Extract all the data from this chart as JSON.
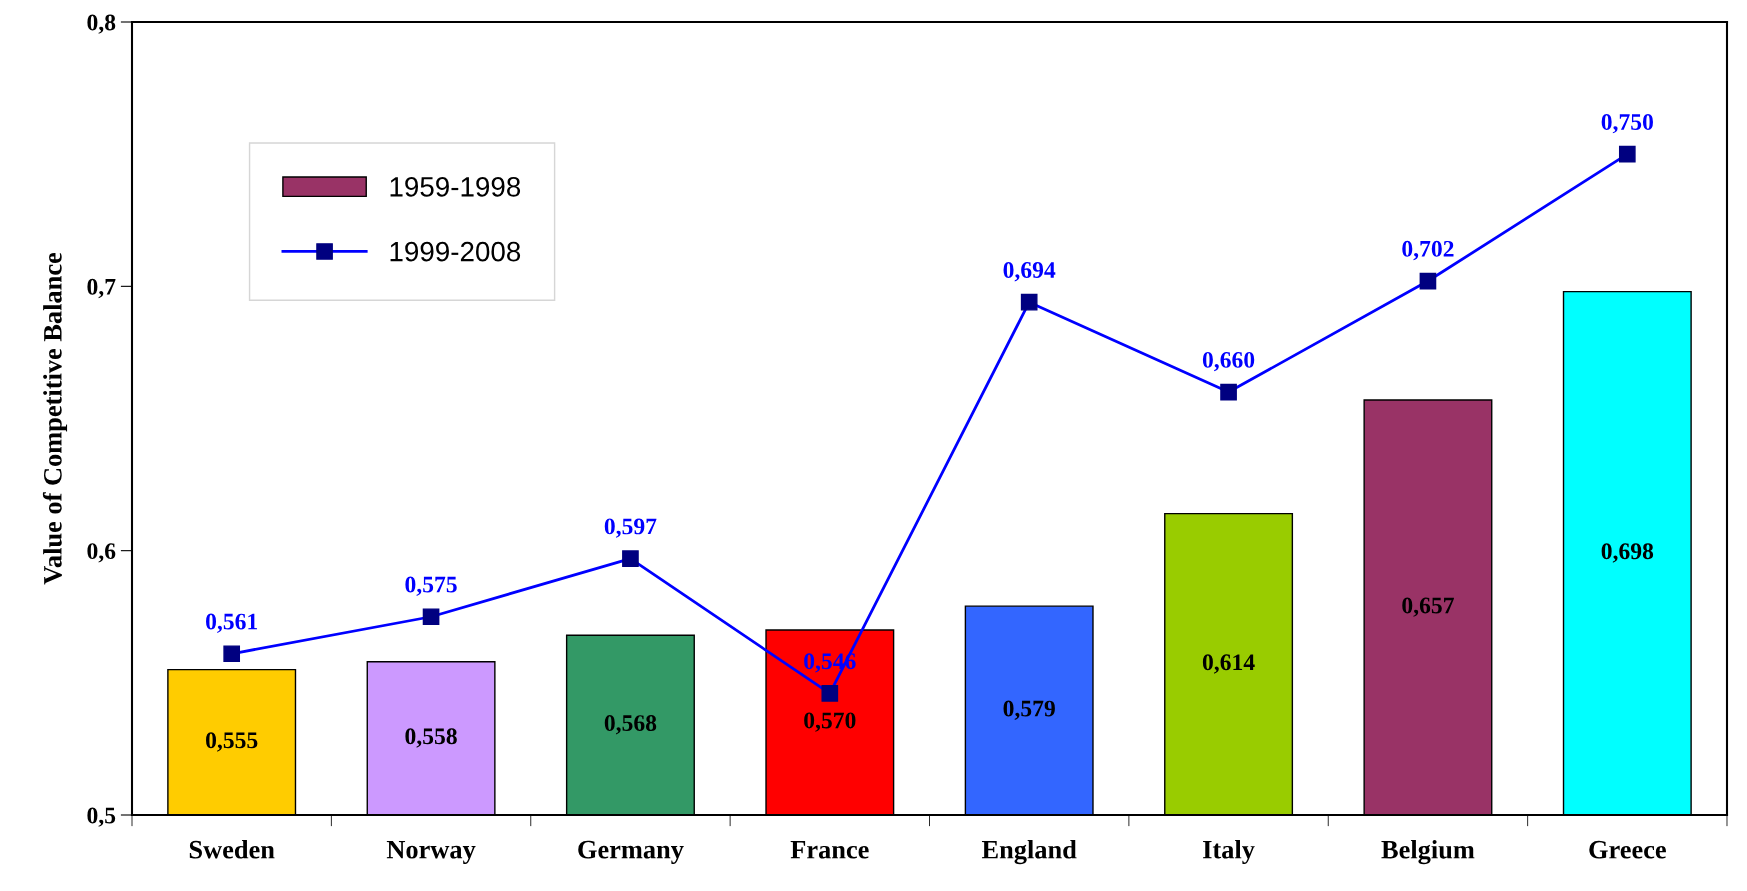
{
  "chart_data": {
    "type": "bar",
    "ylabel": "Value of Competitive Balance",
    "categories": [
      "Sweden",
      "Norway",
      "Germany",
      "France",
      "England",
      "Italy",
      "Belgium",
      "Greece"
    ],
    "series": [
      {
        "name": "1959-1998",
        "color": "#993366",
        "colors": [
          "#ffcc00",
          "#cc99ff",
          "#339966",
          "#ff0000",
          "#3366ff",
          "#99cc00",
          "#993366",
          "#00ffff"
        ],
        "values": [
          0.555,
          0.558,
          0.568,
          0.57,
          0.579,
          0.614,
          0.657,
          0.698
        ],
        "value_labels": [
          "0,555",
          "0,558",
          "0,568",
          "0,570",
          "0,579",
          "0,614",
          "0,657",
          "0,698"
        ]
      },
      {
        "name": "1999-2008",
        "type": "line",
        "color": "#0000ff",
        "marker": "square",
        "values": [
          0.561,
          0.575,
          0.597,
          0.546,
          0.694,
          0.66,
          0.702,
          0.75
        ],
        "value_labels": [
          "0,561",
          "0,575",
          "0,597",
          "0,546",
          "0,694",
          "0,660",
          "0,702",
          "0,750"
        ]
      }
    ],
    "ylim": [
      0.5,
      0.8
    ],
    "yticks": [
      {
        "value": 0.5,
        "label": "0,5"
      },
      {
        "value": 0.6,
        "label": "0,6"
      },
      {
        "value": 0.7,
        "label": "0,7"
      },
      {
        "value": 0.8,
        "label": "0,8"
      }
    ],
    "grid": false,
    "legend": "top left"
  }
}
